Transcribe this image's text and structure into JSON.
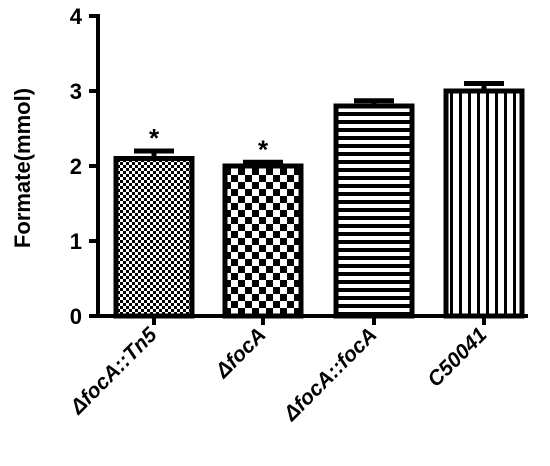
{
  "chart_data": {
    "type": "bar",
    "title": "",
    "xlabel": "",
    "ylabel": "Formate(mmol)",
    "ylim": [
      0,
      4
    ],
    "yticks": [
      0,
      1,
      2,
      3,
      4
    ],
    "grid": false,
    "categories": [
      "ΔfocA::Tn5",
      "ΔfocA",
      "ΔfocA::focA",
      "C50041"
    ],
    "values": [
      2.1,
      2.0,
      2.8,
      3.0
    ],
    "errors": [
      0.1,
      0.05,
      0.07,
      0.1
    ],
    "annotations": [
      "*",
      "*",
      "",
      ""
    ],
    "patterns": [
      "fine-checker",
      "checker",
      "horizontal-stripes",
      "vertical-stripes"
    ]
  }
}
